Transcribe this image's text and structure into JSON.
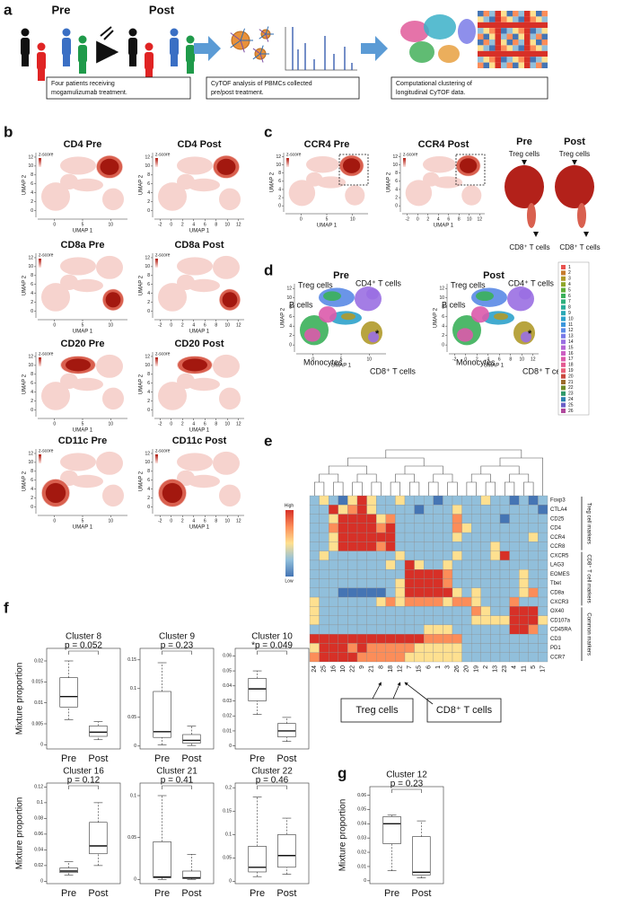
{
  "panel_labels": [
    "a",
    "b",
    "c",
    "d",
    "e",
    "f",
    "g"
  ],
  "panel_a": {
    "pre": "Pre",
    "post": "Post",
    "steps": [
      [
        "Four patients receiving",
        "mogamulizumab treatment."
      ],
      [
        "CyTOF analysis of PBMCs collected",
        "pre/post treatment."
      ],
      [
        "Computational clustering of",
        "longitudinal CyTOF data."
      ]
    ]
  },
  "umap": {
    "xlabel": "UMAP 1",
    "ylabel": "UMAP 2",
    "legend_label": "z-score",
    "xlim": [
      -3,
      13
    ],
    "ylim": [
      -1.5,
      13
    ],
    "pre_xticks": [
      0,
      5,
      10
    ],
    "post_xticks": [
      -2,
      0,
      2,
      4,
      6,
      8,
      10,
      12
    ],
    "yticks": [
      0,
      2,
      4,
      6,
      8,
      10,
      12
    ]
  },
  "panel_b": {
    "titles": [
      [
        "CD4 Pre",
        "CD4 Post"
      ],
      [
        "CD8a Pre",
        "CD8a Post"
      ],
      [
        "CD20 Pre",
        "CD20 Post"
      ],
      [
        "CD11c Pre",
        "CD11c Post"
      ]
    ]
  },
  "panel_c": {
    "titles": [
      "CCR4 Pre",
      "CCR4 Post"
    ],
    "zoom_titles": [
      "Pre",
      "Post"
    ],
    "top_label": "Treg cells",
    "bottom_label": "CD8⁺ T cells"
  },
  "panel_d": {
    "titles": [
      "Pre",
      "Post"
    ],
    "labels": {
      "treg": "Treg cells",
      "cd4": "CD4⁺ T cells",
      "b": "B cells",
      "mono": "Monocytes",
      "cd8": "CD8⁺ T cells",
      "star": "*"
    },
    "legend": {
      "clusters": [
        1,
        2,
        3,
        4,
        5,
        6,
        7,
        8,
        9,
        10,
        11,
        12,
        13,
        14,
        15,
        16,
        17,
        18,
        19,
        20,
        21,
        22,
        23,
        24,
        25,
        26
      ],
      "colors": [
        "#e8524f",
        "#c77c2e",
        "#b09a2a",
        "#8fa62a",
        "#5fae3a",
        "#3bb05a",
        "#2fb07d",
        "#2aad9b",
        "#2ba8b5",
        "#2ea2cb",
        "#3d97dc",
        "#5a8ae6",
        "#7a7be8",
        "#9a6fe2",
        "#b566d4",
        "#cc5fc2",
        "#dc5aab",
        "#e45a92",
        "#e9607a",
        "#c9483e",
        "#9c6b2b",
        "#6f8c2b",
        "#2f9a6a",
        "#2d80b0",
        "#6c5fc7",
        "#b0489c"
      ]
    }
  },
  "chart_data": [
    {
      "type": "box",
      "title": "Cluster 8",
      "annotation": "p = 0.052",
      "ylabel": "Mixture proportion",
      "categories": [
        "Pre",
        "Post"
      ],
      "values": [
        [
          0.006,
          0.009,
          0.0115,
          0.016,
          0.02
        ],
        [
          0.0012,
          0.002,
          0.003,
          0.0045,
          0.0055
        ]
      ],
      "ylim": [
        -0.001,
        0.023
      ],
      "yticks": [
        0,
        0.005,
        0.01,
        0.015,
        0.02
      ]
    },
    {
      "type": "box",
      "title": "Cluster 9",
      "annotation": "p = 0.23",
      "categories": [
        "Pre",
        "Post"
      ],
      "values": [
        [
          0.002,
          0.015,
          0.025,
          0.095,
          0.145
        ],
        [
          0.001,
          0.005,
          0.01,
          0.02,
          0.035
        ]
      ],
      "ylim": [
        -0.005,
        0.17
      ],
      "yticks": [
        0,
        0.05,
        0.1,
        0.15
      ]
    },
    {
      "type": "box",
      "title": "Cluster 10",
      "annotation": "*p = 0.049",
      "categories": [
        "Pre",
        "Post"
      ],
      "values": [
        [
          0.021,
          0.03,
          0.038,
          0.045,
          0.05
        ],
        [
          0.003,
          0.006,
          0.01,
          0.015,
          0.019
        ]
      ],
      "ylim": [
        -0.002,
        0.065
      ],
      "yticks": [
        0,
        0.01,
        0.02,
        0.03,
        0.04,
        0.05,
        0.06
      ]
    },
    {
      "type": "box",
      "title": "Cluster 16",
      "annotation": "p = 0.12",
      "ylabel": "Mixture proportion",
      "categories": [
        "Pre",
        "Post"
      ],
      "values": [
        [
          0.008,
          0.011,
          0.013,
          0.017,
          0.025
        ],
        [
          0.02,
          0.035,
          0.045,
          0.075,
          0.1
        ]
      ],
      "ylim": [
        -0.003,
        0.125
      ],
      "yticks": [
        0,
        0.02,
        0.04,
        0.06,
        0.08,
        0.1,
        0.12
      ]
    },
    {
      "type": "box",
      "title": "Cluster 21",
      "annotation": "p = 0.41",
      "categories": [
        "Pre",
        "Post"
      ],
      "values": [
        [
          0,
          0.002,
          0.003,
          0.045,
          0.1
        ],
        [
          0,
          0.001,
          0.002,
          0.01,
          0.03
        ]
      ],
      "ylim": [
        -0.005,
        0.115
      ],
      "yticks": [
        0,
        0.05,
        0.1
      ]
    },
    {
      "type": "box",
      "title": "Cluster 22",
      "annotation": "p = 0.46",
      "categories": [
        "Pre",
        "Post"
      ],
      "values": [
        [
          0.01,
          0.02,
          0.03,
          0.075,
          0.18
        ],
        [
          0.015,
          0.03,
          0.055,
          0.1,
          0.135
        ]
      ],
      "ylim": [
        -0.005,
        0.21
      ],
      "yticks": [
        0,
        0.05,
        0.1,
        0.15,
        0.2
      ]
    },
    {
      "type": "box",
      "title": "Cluster 12",
      "annotation": "p = 0.23",
      "ylabel": "Mixture proportion",
      "categories": [
        "Pre",
        "Post"
      ],
      "values": [
        [
          0.007,
          0.026,
          0.04,
          0.045,
          0.046
        ],
        [
          0.002,
          0.004,
          0.006,
          0.031,
          0.042
        ]
      ],
      "ylim": [
        -0.002,
        0.066
      ],
      "yticks": [
        0,
        0.01,
        0.02,
        0.03,
        0.04,
        0.05,
        0.06
      ]
    },
    {
      "type": "heatmap",
      "columns": [
        24,
        25,
        16,
        10,
        22,
        9,
        21,
        8,
        18,
        12,
        7,
        15,
        6,
        1,
        3,
        26,
        20,
        19,
        2,
        13,
        23,
        4,
        11,
        5,
        17
      ],
      "rows": [
        "Foxp3",
        "CTLA4",
        "CD25",
        "CD4",
        "CCR4",
        "CCR8",
        "CXCR5",
        "LAG3",
        "EOMES",
        "Tbet",
        "CD8a",
        "CXCR3",
        "OX40",
        "CD107a",
        "CD45RA",
        "CD3",
        "PD1",
        "CCR7"
      ],
      "row_group_labels": [
        "Treg cell markers",
        "CD8⁺ T cell markers",
        "Common markers"
      ],
      "colorbar_labels": [
        "High",
        "Low"
      ],
      "colors": [
        "#4575b4",
        "#91bfdb",
        "#fee090",
        "#fc8d59",
        "#d73027"
      ],
      "annotations": [
        "Treg cells",
        "CD8⁺ T cells"
      ],
      "values": [
        [
          1,
          2,
          1,
          0,
          2,
          4,
          2,
          1,
          1,
          2,
          1,
          1,
          1,
          0,
          1,
          1,
          1,
          1,
          2,
          1,
          1,
          0,
          1,
          0,
          1
        ],
        [
          1,
          1,
          4,
          2,
          3,
          4,
          2,
          1,
          1,
          1,
          1,
          0,
          1,
          1,
          1,
          2,
          1,
          1,
          1,
          1,
          1,
          1,
          1,
          1,
          0
        ],
        [
          1,
          1,
          2,
          4,
          4,
          4,
          4,
          2,
          3,
          1,
          1,
          1,
          1,
          1,
          1,
          3,
          1,
          1,
          1,
          1,
          0,
          1,
          1,
          1,
          1
        ],
        [
          1,
          1,
          3,
          4,
          4,
          4,
          4,
          3,
          4,
          1,
          1,
          1,
          1,
          1,
          1,
          3,
          2,
          1,
          1,
          1,
          1,
          1,
          1,
          1,
          1
        ],
        [
          1,
          1,
          2,
          4,
          4,
          4,
          4,
          4,
          4,
          1,
          1,
          1,
          1,
          1,
          1,
          2,
          1,
          1,
          1,
          1,
          1,
          1,
          1,
          2,
          1
        ],
        [
          1,
          1,
          2,
          4,
          4,
          4,
          4,
          3,
          4,
          1,
          1,
          1,
          1,
          1,
          1,
          1,
          1,
          1,
          1,
          2,
          1,
          1,
          1,
          1,
          1
        ],
        [
          1,
          2,
          1,
          1,
          1,
          1,
          1,
          1,
          1,
          2,
          1,
          1,
          1,
          1,
          1,
          2,
          1,
          1,
          1,
          2,
          4,
          1,
          1,
          1,
          1
        ],
        [
          1,
          1,
          1,
          1,
          1,
          1,
          1,
          1,
          2,
          1,
          4,
          2,
          1,
          1,
          2,
          1,
          1,
          1,
          1,
          1,
          1,
          1,
          1,
          1,
          1
        ],
        [
          1,
          1,
          1,
          1,
          1,
          1,
          1,
          1,
          1,
          1,
          4,
          4,
          4,
          4,
          3,
          1,
          1,
          1,
          1,
          1,
          1,
          1,
          2,
          1,
          1
        ],
        [
          1,
          1,
          1,
          1,
          1,
          1,
          1,
          1,
          1,
          2,
          4,
          4,
          4,
          4,
          3,
          1,
          1,
          1,
          1,
          1,
          1,
          1,
          2,
          1,
          1
        ],
        [
          1,
          1,
          1,
          0,
          0,
          0,
          0,
          0,
          1,
          2,
          4,
          4,
          4,
          4,
          4,
          2,
          1,
          2,
          1,
          1,
          1,
          1,
          2,
          3,
          1
        ],
        [
          2,
          1,
          1,
          1,
          1,
          1,
          1,
          2,
          3,
          2,
          3,
          3,
          3,
          3,
          2,
          3,
          3,
          2,
          1,
          1,
          1,
          3,
          1,
          1,
          1
        ],
        [
          2,
          1,
          1,
          1,
          1,
          1,
          1,
          1,
          1,
          1,
          1,
          1,
          1,
          1,
          1,
          1,
          1,
          3,
          2,
          1,
          1,
          4,
          4,
          4,
          1
        ],
        [
          2,
          1,
          1,
          1,
          1,
          1,
          1,
          1,
          1,
          1,
          1,
          1,
          1,
          1,
          1,
          1,
          1,
          2,
          2,
          2,
          2,
          4,
          4,
          4,
          2
        ],
        [
          1,
          1,
          1,
          1,
          1,
          1,
          1,
          1,
          1,
          1,
          1,
          1,
          2,
          2,
          2,
          1,
          1,
          1,
          1,
          1,
          1,
          4,
          4,
          3,
          1
        ],
        [
          4,
          4,
          4,
          4,
          4,
          4,
          4,
          4,
          4,
          4,
          4,
          4,
          3,
          3,
          3,
          3,
          1,
          1,
          1,
          1,
          1,
          1,
          1,
          1,
          1
        ],
        [
          2,
          4,
          4,
          4,
          3,
          4,
          3,
          3,
          3,
          3,
          3,
          2,
          2,
          2,
          2,
          2,
          1,
          1,
          1,
          1,
          1,
          1,
          1,
          1,
          1
        ],
        [
          3,
          4,
          4,
          4,
          4,
          3,
          3,
          3,
          3,
          3,
          2,
          2,
          2,
          2,
          2,
          2,
          1,
          1,
          1,
          1,
          1,
          1,
          1,
          1,
          1
        ]
      ]
    }
  ]
}
